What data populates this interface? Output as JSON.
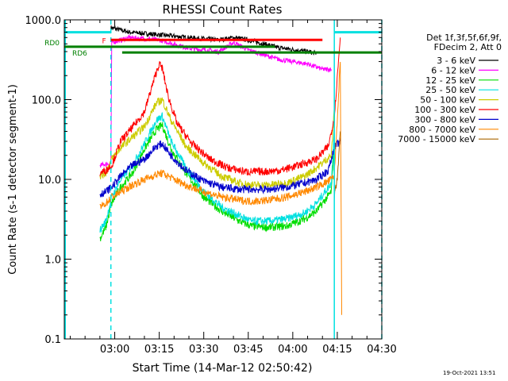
{
  "chart_data": {
    "type": "line",
    "title": "RHESSI Count Rates",
    "xlabel": "Start Time (14-Mar-12 02:50:42)",
    "ylabel": "Count Rate (s-1 detector segment-1)",
    "yscale": "log",
    "ylim": [
      0.1,
      1000
    ],
    "xlim_minutes": [
      -7,
      100
    ],
    "x_ticks": [
      {
        "label": "03:00",
        "value": 10
      },
      {
        "label": "03:15",
        "value": 25
      },
      {
        "label": "03:30",
        "value": 40
      },
      {
        "label": "03:45",
        "value": 55
      },
      {
        "label": "04:00",
        "value": 70
      },
      {
        "label": "04:15",
        "value": 85
      },
      {
        "label": "04:30",
        "value": 100
      }
    ],
    "y_ticks": [
      {
        "label": "1000.0",
        "value": 1000
      },
      {
        "label": "100.0",
        "value": 100
      },
      {
        "label": "10.0",
        "value": 10
      },
      {
        "label": "1.0",
        "value": 1
      },
      {
        "label": "0.1",
        "value": 0.1
      }
    ],
    "legend_header": [
      "Det 1f,3f,5f,6f,9f,",
      "FDecim 2, Att 0"
    ],
    "series": [
      {
        "name": "3 - 6 keV",
        "color": "#000000",
        "points": [
          [
            8.7,
            800
          ],
          [
            15,
            700
          ],
          [
            25,
            650
          ],
          [
            35,
            600
          ],
          [
            45,
            560
          ],
          [
            50,
            600
          ],
          [
            55,
            560
          ],
          [
            65,
            450
          ],
          [
            75,
            400
          ],
          [
            78,
            380
          ]
        ]
      },
      {
        "name": "6 - 12 keV",
        "color": "#ff00ff",
        "points": [
          [
            5,
            15
          ],
          [
            8.7,
            16
          ],
          [
            9,
            520
          ],
          [
            15,
            600
          ],
          [
            25,
            560
          ],
          [
            35,
            440
          ],
          [
            45,
            400
          ],
          [
            50,
            520
          ],
          [
            55,
            420
          ],
          [
            65,
            320
          ],
          [
            75,
            280
          ],
          [
            80,
            240
          ],
          [
            83,
            240
          ]
        ]
      },
      {
        "name": "12 - 25 keV",
        "color": "#00dd00",
        "points": [
          [
            5,
            1.8
          ],
          [
            7,
            2.5
          ],
          [
            9,
            5
          ],
          [
            12,
            8
          ],
          [
            16,
            12
          ],
          [
            20,
            24
          ],
          [
            24,
            42
          ],
          [
            26,
            48
          ],
          [
            29,
            24
          ],
          [
            34,
            12
          ],
          [
            40,
            6
          ],
          [
            46,
            4
          ],
          [
            52,
            3
          ],
          [
            56,
            2.6
          ],
          [
            62,
            2.5
          ],
          [
            68,
            2.6
          ],
          [
            74,
            3.2
          ],
          [
            78,
            4
          ],
          [
            83,
            7
          ],
          [
            84,
            30
          ]
        ]
      },
      {
        "name": "25 - 50 keV",
        "color": "#00e0e0",
        "points": [
          [
            5,
            2.3
          ],
          [
            7,
            3
          ],
          [
            9,
            6
          ],
          [
            12,
            10
          ],
          [
            16,
            15
          ],
          [
            20,
            28
          ],
          [
            24,
            55
          ],
          [
            26,
            62
          ],
          [
            29,
            30
          ],
          [
            34,
            14
          ],
          [
            40,
            7
          ],
          [
            46,
            4.5
          ],
          [
            52,
            3.5
          ],
          [
            56,
            3
          ],
          [
            62,
            3
          ],
          [
            68,
            3.2
          ],
          [
            74,
            3.8
          ],
          [
            78,
            5
          ],
          [
            83,
            9
          ],
          [
            84,
            50
          ]
        ]
      },
      {
        "name": "50 - 100 keV",
        "color": "#cccc00",
        "points": [
          [
            5,
            11
          ],
          [
            7,
            12
          ],
          [
            9,
            18
          ],
          [
            12,
            25
          ],
          [
            16,
            34
          ],
          [
            20,
            46
          ],
          [
            24,
            90
          ],
          [
            26,
            100
          ],
          [
            29,
            55
          ],
          [
            34,
            26
          ],
          [
            40,
            16
          ],
          [
            46,
            11
          ],
          [
            52,
            9
          ],
          [
            56,
            8.5
          ],
          [
            62,
            8.5
          ],
          [
            68,
            9
          ],
          [
            74,
            11
          ],
          [
            78,
            14
          ],
          [
            83,
            20
          ],
          [
            84,
            80
          ]
        ]
      },
      {
        "name": "100 - 300 keV",
        "color": "#ff0000",
        "points": [
          [
            5,
            12
          ],
          [
            7,
            13
          ],
          [
            9,
            15
          ],
          [
            12,
            30
          ],
          [
            16,
            45
          ],
          [
            20,
            70
          ],
          [
            24,
            220
          ],
          [
            25,
            280
          ],
          [
            26,
            250
          ],
          [
            28,
            110
          ],
          [
            31,
            50
          ],
          [
            36,
            28
          ],
          [
            42,
            18
          ],
          [
            48,
            14
          ],
          [
            54,
            12.5
          ],
          [
            60,
            12.5
          ],
          [
            66,
            13
          ],
          [
            72,
            15
          ],
          [
            78,
            18
          ],
          [
            82,
            26
          ],
          [
            84,
            60
          ],
          [
            86,
            600
          ]
        ]
      },
      {
        "name": "300 - 800 keV",
        "color": "#0000cc",
        "points": [
          [
            5,
            6.5
          ],
          [
            7,
            7
          ],
          [
            9,
            8
          ],
          [
            12,
            11
          ],
          [
            16,
            15
          ],
          [
            20,
            18
          ],
          [
            24,
            26
          ],
          [
            26,
            28
          ],
          [
            29,
            20
          ],
          [
            34,
            13
          ],
          [
            40,
            9.5
          ],
          [
            46,
            8
          ],
          [
            52,
            7.5
          ],
          [
            56,
            7.5
          ],
          [
            62,
            7.5
          ],
          [
            68,
            8
          ],
          [
            74,
            9
          ],
          [
            78,
            10
          ],
          [
            82,
            13
          ],
          [
            84,
            25
          ],
          [
            86,
            30
          ]
        ]
      },
      {
        "name": "800 - 7000 keV",
        "color": "#ff8800",
        "points": [
          [
            5,
            4.5
          ],
          [
            7,
            5
          ],
          [
            9,
            6
          ],
          [
            12,
            7
          ],
          [
            16,
            8.5
          ],
          [
            20,
            10
          ],
          [
            24,
            11.5
          ],
          [
            26,
            12
          ],
          [
            29,
            10.5
          ],
          [
            34,
            8.5
          ],
          [
            40,
            7
          ],
          [
            46,
            6
          ],
          [
            52,
            5.5
          ],
          [
            56,
            5.3
          ],
          [
            62,
            5.5
          ],
          [
            68,
            6
          ],
          [
            74,
            7
          ],
          [
            78,
            8
          ],
          [
            82,
            9.5
          ],
          [
            84,
            11
          ],
          [
            86,
            300
          ],
          [
            86.5,
            0.2
          ]
        ]
      },
      {
        "name": "7000 - 15000 keV",
        "color": "#aa6600",
        "points": [
          [
            84,
            6
          ],
          [
            85,
            10
          ],
          [
            86,
            40
          ]
        ]
      }
    ],
    "annotations": [
      {
        "label": "F",
        "color": "#ff0000",
        "x_start": 8.7,
        "x_end": 80,
        "y": 560
      },
      {
        "label": "RD0",
        "color": "#008000",
        "x_start": -7,
        "x_end": 64,
        "y": 460
      },
      {
        "label": "RD6",
        "color": "#008000",
        "x_start": 12.5,
        "x_end": 100,
        "y": 390
      }
    ],
    "night_intervals": [
      {
        "start": -7,
        "end": 8.7,
        "y": 700,
        "color": "#00e0e0"
      },
      {
        "start": 84,
        "end": 100,
        "y": 700,
        "color": "#00e0e0"
      }
    ],
    "cyan_markers": [
      {
        "x": 8.7,
        "style": "dashed"
      },
      {
        "x": 84,
        "style": "solid"
      },
      {
        "x": 100,
        "style": "dashed"
      }
    ]
  },
  "footer": {
    "timestamp": "19-Oct-2021 13:51"
  }
}
